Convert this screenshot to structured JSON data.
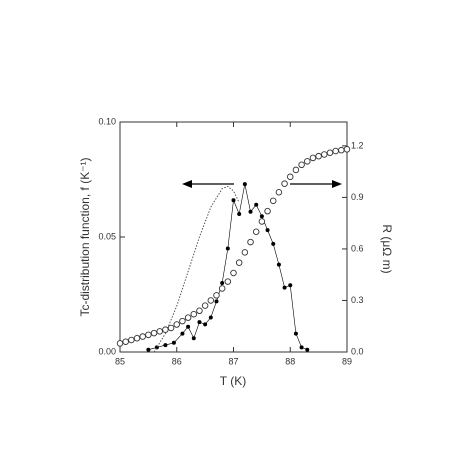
{
  "chart_data": {
    "type": "line",
    "x_label": "T (K)",
    "y_label": "Tc-distribution function, f (K⁻¹)",
    "y2_label": "R (μΩ m)",
    "xlim": [
      85,
      89
    ],
    "xticks": [
      85,
      86,
      87,
      88,
      89
    ],
    "ylim": [
      0,
      0.1
    ],
    "yticks": [
      {
        "value": 0,
        "label": "0.00"
      },
      {
        "value": 0.05,
        "label": "0.05"
      },
      {
        "value": 0.1,
        "label": "0.10"
      }
    ],
    "y2lim": [
      0,
      1.339
    ],
    "y2ticks": [
      {
        "value": 0,
        "label": "0.0"
      },
      {
        "value": 0.3,
        "label": "0.3"
      },
      {
        "value": 0.6,
        "label": "0.6"
      },
      {
        "value": 0.9,
        "label": "0.9"
      },
      {
        "value": 1.2,
        "label": "1.2"
      }
    ],
    "series": [
      {
        "color": "#000000",
        "style": "solid-dots",
        "x": [
          85.5,
          85.65,
          85.8,
          85.95,
          86.1,
          86.2,
          86.3,
          86.4,
          86.5,
          86.6,
          86.7,
          86.8,
          86.9,
          87.0,
          87.1,
          87.2,
          87.3,
          87.4,
          87.5,
          87.6,
          87.7,
          87.8,
          87.9,
          88.0,
          88.1,
          88.2,
          88.3
        ],
        "values": [
          0.001,
          0.002,
          0.003,
          0.004,
          0.008,
          0.011,
          0.006,
          0.013,
          0.012,
          0.015,
          0.022,
          0.03,
          0.045,
          0.066,
          0.06,
          0.073,
          0.061,
          0.064,
          0.059,
          0.053,
          0.047,
          0.038,
          0.028,
          0.029,
          0.008,
          0.002,
          0.001
        ]
      },
      {
        "color": "#555555",
        "style": "dotted",
        "x": [
          85.6,
          85.8,
          86.0,
          86.2,
          86.4,
          86.6,
          86.8,
          86.9,
          87.0,
          87.1
        ],
        "values": [
          0,
          0.008,
          0.02,
          0.035,
          0.05,
          0.063,
          0.071,
          0.072,
          0.07,
          0.065
        ]
      },
      {
        "color": "#333333",
        "style": "open-circles",
        "axis": "y2",
        "x": [
          85.0,
          85.1,
          85.2,
          85.3,
          85.4,
          85.5,
          85.6,
          85.7,
          85.8,
          85.9,
          86.0,
          86.1,
          86.2,
          86.3,
          86.4,
          86.5,
          86.6,
          86.7,
          86.8,
          86.9,
          87.0,
          87.1,
          87.2,
          87.3,
          87.4,
          87.5,
          87.6,
          87.7,
          87.8,
          87.9,
          88.0,
          88.1,
          88.2,
          88.3,
          88.4,
          88.5,
          88.6,
          88.7,
          88.8,
          88.9,
          89.0
        ],
        "values": [
          0.05,
          0.06,
          0.07,
          0.08,
          0.09,
          0.1,
          0.11,
          0.12,
          0.13,
          0.14,
          0.16,
          0.18,
          0.2,
          0.22,
          0.24,
          0.27,
          0.3,
          0.33,
          0.37,
          0.41,
          0.46,
          0.52,
          0.58,
          0.64,
          0.7,
          0.76,
          0.82,
          0.88,
          0.93,
          0.98,
          1.02,
          1.06,
          1.09,
          1.11,
          1.13,
          1.14,
          1.15,
          1.16,
          1.17,
          1.175,
          1.18
        ]
      }
    ]
  }
}
